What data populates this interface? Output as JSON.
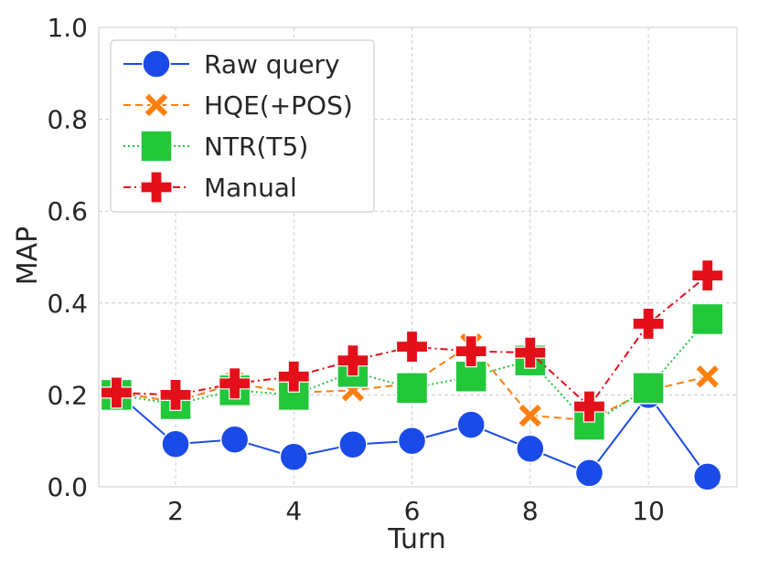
{
  "chart_data": {
    "type": "line",
    "xlabel": "Turn",
    "ylabel": "MAP",
    "xlim": [
      0.7,
      11.5
    ],
    "ylim": [
      0.0,
      1.0
    ],
    "xticks": [
      2,
      4,
      6,
      8,
      10
    ],
    "xtick_labels": [
      "2",
      "4",
      "6",
      "8",
      "10"
    ],
    "yticks": [
      0.0,
      0.2,
      0.4,
      0.6,
      0.8,
      1.0
    ],
    "ytick_labels": [
      "0.0",
      "0.2",
      "0.4",
      "0.6",
      "0.8",
      "1.0"
    ],
    "grid": true,
    "legend_position": "top-left",
    "x": [
      1,
      2,
      3,
      4,
      5,
      6,
      7,
      8,
      9,
      10,
      11
    ],
    "series": [
      {
        "name": "Raw query",
        "color": "#1a4be8",
        "marker": "circle",
        "dash": "solid",
        "values": [
          0.205,
          0.093,
          0.103,
          0.065,
          0.092,
          0.1,
          0.135,
          0.083,
          0.03,
          0.2,
          0.022
        ]
      },
      {
        "name": "HQE(+POS)",
        "color": "#ff7f0e",
        "marker": "x",
        "dash": "dashed",
        "values": [
          0.205,
          0.185,
          0.225,
          0.205,
          0.21,
          0.225,
          0.31,
          0.155,
          0.145,
          0.21,
          0.24
        ]
      },
      {
        "name": "NTR(T5)",
        "color": "#22c73a",
        "marker": "square",
        "dash": "dotted",
        "values": [
          0.2,
          0.18,
          0.21,
          0.2,
          0.25,
          0.215,
          0.24,
          0.275,
          0.135,
          0.215,
          0.365
        ]
      },
      {
        "name": "Manual",
        "color": "#e3101a",
        "marker": "plus",
        "dash": "dashdot",
        "values": [
          0.205,
          0.2,
          0.225,
          0.24,
          0.275,
          0.305,
          0.295,
          0.292,
          0.175,
          0.355,
          0.46
        ]
      }
    ]
  }
}
